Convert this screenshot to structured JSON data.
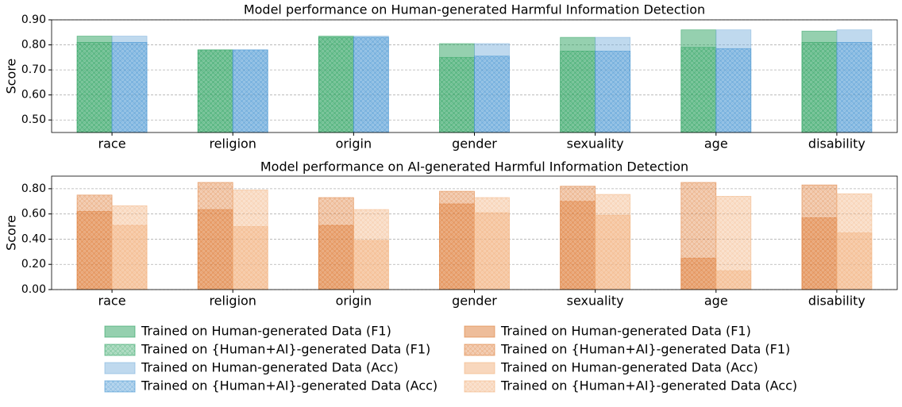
{
  "chart_data": [
    {
      "type": "bar",
      "title": "Model performance on Human-generated Harmful Information Detection",
      "y_label": "Score",
      "categories": [
        "race",
        "religion",
        "origin",
        "gender",
        "sexuality",
        "age",
        "disability"
      ],
      "ylim": [
        0.45,
        0.9
      ],
      "yticks": [
        {
          "value": 0.5,
          "label": "0.50"
        },
        {
          "value": 0.6,
          "label": "0.60"
        },
        {
          "value": 0.7,
          "label": "0.70"
        },
        {
          "value": 0.8,
          "label": "0.80"
        },
        {
          "value": 0.9,
          "label": "0.90"
        }
      ],
      "grid": true,
      "series": [
        {
          "name": "Trained on Human-generated Data (F1)",
          "color": "#2ca25f",
          "hatch": false,
          "group": "F1",
          "values": [
            0.835,
            0.78,
            0.835,
            0.805,
            0.83,
            0.86,
            0.855
          ]
        },
        {
          "name": "Trained on {Human+AI}-generated Data (F1)",
          "color": "#2ca25f",
          "hatch": true,
          "group": "F1",
          "values": [
            0.81,
            0.78,
            0.83,
            0.75,
            0.775,
            0.79,
            0.81
          ]
        },
        {
          "name": "Trained on Human-generated Data (Acc)",
          "color": "#7fb3dd",
          "hatch": false,
          "group": "Acc",
          "values": [
            0.835,
            0.78,
            0.835,
            0.805,
            0.83,
            0.86,
            0.86
          ]
        },
        {
          "name": "Trained on {Human+AI}-generated Data (Acc)",
          "color": "#3b8fd0",
          "hatch": true,
          "group": "Acc",
          "values": [
            0.81,
            0.78,
            0.83,
            0.755,
            0.775,
            0.785,
            0.81
          ]
        }
      ]
    },
    {
      "type": "bar",
      "title": "Model performance on AI-generated Harmful Information Detection",
      "y_label": "Score",
      "categories": [
        "race",
        "religion",
        "origin",
        "gender",
        "sexuality",
        "age",
        "disability"
      ],
      "ylim": [
        0,
        0.9
      ],
      "yticks": [
        {
          "value": 0,
          "label": "0.00"
        },
        {
          "value": 0.2,
          "label": "0.20"
        },
        {
          "value": 0.4,
          "label": "0.40"
        },
        {
          "value": 0.6,
          "label": "0.60"
        },
        {
          "value": 0.8,
          "label": "0.80"
        }
      ],
      "grid": true,
      "series": [
        {
          "name": "Trained on Human-generated Data (F1)",
          "color": "#de7b36",
          "hatch": false,
          "group": "F1",
          "values": [
            0.62,
            0.635,
            0.51,
            0.68,
            0.7,
            0.25,
            0.57
          ]
        },
        {
          "name": "Trained on {Human+AI}-generated Data (F1)",
          "color": "#de7b36",
          "hatch": true,
          "group": "F1",
          "values": [
            0.75,
            0.85,
            0.73,
            0.78,
            0.82,
            0.85,
            0.83
          ]
        },
        {
          "name": "Trained on Human-generated Data (Acc)",
          "color": "#f2b07c",
          "hatch": false,
          "group": "Acc",
          "values": [
            0.51,
            0.5,
            0.39,
            0.61,
            0.59,
            0.15,
            0.45
          ]
        },
        {
          "name": "Trained on {Human+AI}-generated Data (Acc)",
          "color": "#f2b07c",
          "hatch": true,
          "group": "Acc",
          "values": [
            0.665,
            0.79,
            0.635,
            0.73,
            0.755,
            0.74,
            0.76
          ]
        }
      ]
    }
  ]
}
